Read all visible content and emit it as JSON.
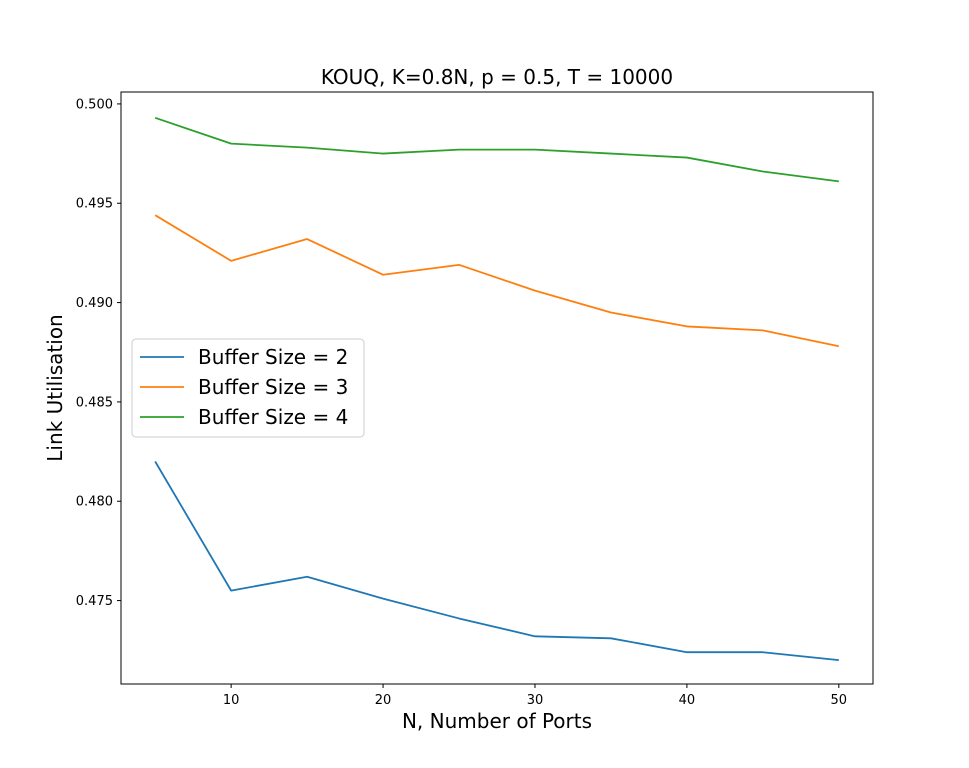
{
  "chart_data": {
    "type": "line",
    "title": "KOUQ, K=0.8N, p = 0.5, T = 10000",
    "xlabel": "N, Number of Ports",
    "ylabel": "Link Utilisation",
    "x": [
      5,
      10,
      15,
      20,
      25,
      30,
      35,
      40,
      45,
      50
    ],
    "xlim": [
      2.75,
      52.25
    ],
    "ylim": [
      0.4708,
      0.5006
    ],
    "xticks": [
      10,
      20,
      30,
      40,
      50
    ],
    "yticks": [
      0.475,
      0.48,
      0.485,
      0.49,
      0.495,
      0.5
    ],
    "ytick_labels": [
      "0.475",
      "0.480",
      "0.485",
      "0.490",
      "0.495",
      "0.500"
    ],
    "grid": false,
    "legend_position": "center-left",
    "series": [
      {
        "name": "Buffer Size = 2",
        "color": "#1f77b4",
        "values": [
          0.482,
          0.4755,
          0.4762,
          0.4751,
          0.4741,
          0.4732,
          0.4731,
          0.4724,
          0.4724,
          0.472
        ]
      },
      {
        "name": "Buffer Size = 3",
        "color": "#ff7f0e",
        "values": [
          0.4944,
          0.4921,
          0.4932,
          0.4914,
          0.4919,
          0.4906,
          0.4895,
          0.4888,
          0.4886,
          0.4878
        ]
      },
      {
        "name": "Buffer Size = 4",
        "color": "#2ca02c",
        "values": [
          0.4993,
          0.498,
          0.4978,
          0.4975,
          0.4977,
          0.4977,
          0.4975,
          0.4973,
          0.4966,
          0.4961
        ]
      }
    ]
  }
}
